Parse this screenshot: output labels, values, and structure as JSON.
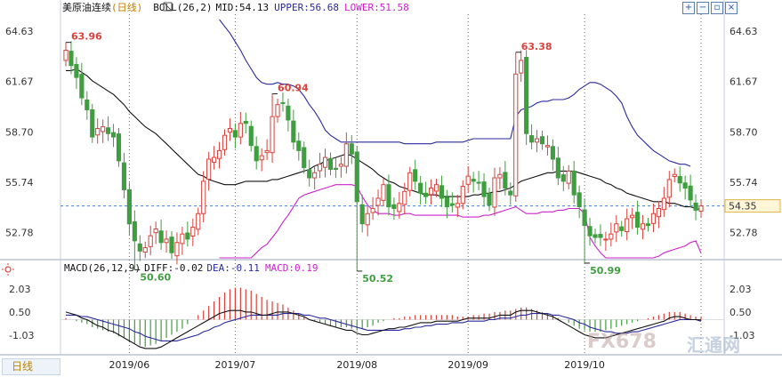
{
  "header": {
    "instrument": "美原油连续",
    "period_tag": "(日线)",
    "indicator": "BOLL(26,2)",
    "mid": "MID:54.13",
    "upper": "UPPER:56.68",
    "lower": "LOWER:51.58"
  },
  "macd_header": {
    "label": "MACD(26,12,9)",
    "diff": "DIFF:-0.02",
    "dea": "DEA:-0.11",
    "macd": "MACD:0.19"
  },
  "bottom_tab": "日线",
  "watermark": {
    "brand": "FX678",
    "cn": "汇通网"
  },
  "colors": {
    "up": "#d8423c",
    "down": "#3f9e3f",
    "mid": "#111111",
    "upper": "#2a2a9c",
    "lower": "#cc22cc",
    "diff": "#111111",
    "dea": "#2a2a9c",
    "price_line": "#4a7fd4"
  },
  "chart_data": {
    "type": "candlestick",
    "price_axis": {
      "ylim": [
        51.3,
        65.3
      ],
      "ticks": [
        "64.63",
        "61.67",
        "58.70",
        "55.74",
        "52.78"
      ]
    },
    "macd_axis": {
      "ylim": [
        -2.2,
        2.9
      ],
      "ticks": [
        "2.03",
        "0.50",
        "-1.03"
      ]
    },
    "current_price": "54.35",
    "x_labels": [
      {
        "i": 12,
        "text": "2019/06"
      },
      {
        "i": 32,
        "text": "2019/07"
      },
      {
        "i": 55,
        "text": "2019/08"
      },
      {
        "i": 76,
        "text": "2019/09"
      },
      {
        "i": 98,
        "text": "2019/10"
      }
    ],
    "annotations": [
      {
        "i": 0,
        "value": 63.96,
        "text": "63.96",
        "pos": "high"
      },
      {
        "i": 13,
        "value": 50.6,
        "text": "50.60",
        "pos": "low"
      },
      {
        "i": 39,
        "value": 60.94,
        "text": "60.94",
        "pos": "high"
      },
      {
        "i": 55,
        "value": 50.52,
        "text": "50.52",
        "pos": "low"
      },
      {
        "i": 85,
        "value": 63.38,
        "text": "63.38",
        "pos": "high"
      },
      {
        "i": 98,
        "value": 50.99,
        "text": "50.99",
        "pos": "low"
      }
    ],
    "closes": [
      63.5,
      62.6,
      61.9,
      60.7,
      60.0,
      58.4,
      58.9,
      59.0,
      58.6,
      58.4,
      57.0,
      55.3,
      53.3,
      52.3,
      51.7,
      51.9,
      52.6,
      53.0,
      52.2,
      52.4,
      51.6,
      52.2,
      52.7,
      52.4,
      53.1,
      53.9,
      55.8,
      57.1,
      57.2,
      57.6,
      58.5,
      58.9,
      58.4,
      59.2,
      59.2,
      57.9,
      57.0,
      57.3,
      57.6,
      59.6,
      60.3,
      60.4,
      59.4,
      58.1,
      57.6,
      56.6,
      56.0,
      56.3,
      56.8,
      57.2,
      56.5,
      56.5,
      56.8,
      58.0,
      57.4,
      54.6,
      53.3,
      53.9,
      54.2,
      54.8,
      55.6,
      54.3,
      54.2,
      54.5,
      55.2,
      56.3,
      55.8,
      55.1,
      54.9,
      55.4,
      55.6,
      54.8,
      54.3,
      54.4,
      54.5,
      55.5,
      56.1,
      55.8,
      55.7,
      54.9,
      54.4,
      56.0,
      56.2,
      55.4,
      55.0,
      62.1,
      62.9,
      58.6,
      58.1,
      58.3,
      58.0,
      57.9,
      57.1,
      56.0,
      55.8,
      56.4,
      55.0,
      54.3,
      53.2,
      52.6,
      52.5,
      52.5,
      52.4,
      52.7,
      53.3,
      52.9,
      53.6,
      53.8,
      53.1,
      53.3,
      53.2,
      53.9,
      54.2,
      54.8,
      55.9,
      56.2,
      55.7,
      55.4,
      54.7,
      54.1,
      54.35
    ],
    "bb_mid": [
      62.3,
      62.3,
      62.4,
      62.2,
      62.0,
      61.7,
      61.5,
      61.3,
      61.1,
      60.9,
      60.6,
      60.3,
      59.9,
      59.6,
      59.3,
      59.0,
      58.8,
      58.6,
      58.3,
      58.0,
      57.7,
      57.4,
      57.1,
      56.8,
      56.5,
      56.2,
      56.1,
      55.9,
      55.8,
      55.7,
      55.6,
      55.6,
      55.6,
      55.7,
      55.8,
      55.8,
      55.8,
      55.8,
      55.8,
      55.9,
      55.9,
      56.0,
      56.1,
      56.2,
      56.3,
      56.4,
      56.5,
      56.7,
      56.8,
      57.0,
      57.1,
      57.2,
      57.3,
      57.4,
      57.3,
      57.1,
      56.9,
      56.7,
      56.5,
      56.2,
      56.0,
      55.8,
      55.7,
      55.5,
      55.4,
      55.3,
      55.2,
      55.1,
      55.0,
      55.0,
      55.0,
      54.9,
      54.9,
      54.9,
      54.9,
      54.9,
      54.9,
      55.0,
      55.0,
      55.1,
      55.1,
      55.2,
      55.2,
      55.3,
      55.4,
      55.6,
      55.8,
      55.9,
      56.0,
      56.1,
      56.2,
      56.3,
      56.3,
      56.4,
      56.4,
      56.4,
      56.4,
      56.3,
      56.2,
      56.1,
      56.0,
      55.9,
      55.7,
      55.6,
      55.4,
      55.3,
      55.1,
      55.0,
      54.9,
      54.8,
      54.7,
      54.6,
      54.6,
      54.6,
      54.5,
      54.5,
      54.4,
      54.3,
      54.3,
      54.2,
      54.13
    ],
    "bb_upper": [
      null,
      null,
      null,
      null,
      null,
      null,
      null,
      null,
      null,
      null,
      null,
      null,
      null,
      null,
      null,
      null,
      null,
      null,
      null,
      null,
      null,
      null,
      null,
      null,
      null,
      null,
      null,
      null,
      null,
      65.3,
      64.9,
      64.5,
      64.0,
      63.5,
      62.9,
      62.4,
      61.9,
      61.6,
      61.5,
      61.5,
      61.6,
      61.5,
      61.5,
      61.4,
      61.2,
      60.8,
      60.3,
      59.9,
      59.4,
      58.8,
      58.5,
      58.3,
      58.1,
      58.1,
      58.1,
      58.1,
      58.1,
      58.1,
      58.1,
      58.1,
      58.1,
      58.1,
      58.1,
      58.1,
      58.0,
      58.0,
      58.0,
      58.0,
      58.0,
      58.0,
      58.1,
      58.1,
      58.1,
      58.1,
      58.1,
      58.1,
      58.2,
      58.3,
      58.3,
      58.3,
      58.3,
      58.3,
      58.3,
      58.3,
      58.3,
      59.6,
      60.0,
      60.1,
      60.2,
      60.4,
      60.5,
      60.5,
      60.6,
      60.6,
      60.6,
      60.7,
      60.9,
      61.2,
      61.4,
      61.6,
      61.6,
      61.5,
      61.3,
      61.1,
      60.8,
      60.4,
      59.6,
      59.0,
      58.5,
      58.2,
      57.9,
      57.6,
      57.4,
      57.2,
      57.0,
      56.9,
      56.8,
      56.8,
      56.68
    ],
    "bb_lower": [
      null,
      null,
      null,
      null,
      null,
      null,
      null,
      null,
      null,
      null,
      null,
      null,
      null,
      null,
      null,
      null,
      null,
      null,
      null,
      null,
      null,
      null,
      null,
      null,
      null,
      null,
      null,
      null,
      null,
      50.5,
      50.5,
      50.5,
      50.6,
      50.8,
      51.0,
      51.3,
      51.6,
      51.9,
      52.1,
      52.5,
      52.9,
      53.4,
      53.8,
      54.3,
      54.8,
      55.0,
      55.1,
      55.2,
      55.3,
      55.4,
      55.5,
      55.6,
      55.6,
      55.6,
      55.6,
      55.5,
      54.9,
      54.4,
      54.1,
      53.9,
      53.9,
      53.9,
      53.8,
      53.8,
      53.9,
      53.9,
      53.8,
      53.8,
      53.8,
      53.8,
      53.8,
      53.8,
      53.8,
      53.8,
      53.8,
      53.7,
      53.7,
      53.7,
      53.7,
      53.8,
      53.8,
      53.9,
      54.0,
      54.1,
      54.2,
      54.3,
      54.1,
      53.9,
      53.9,
      53.9,
      54.0,
      54.0,
      54.0,
      54.1,
      54.1,
      54.2,
      54.2,
      54.2,
      53.9,
      52.5,
      52.0,
      51.6,
      51.3,
      51.2,
      51.2,
      51.2,
      51.1,
      51.0,
      50.9,
      50.8,
      50.9,
      51.2,
      51.4,
      51.6,
      51.7,
      51.8,
      51.9,
      52.0,
      52.2,
      52.3,
      51.58
    ],
    "macd_hist": [
      0.1,
      0.0,
      -0.1,
      -0.2,
      -0.3,
      -0.5,
      -0.6,
      -0.7,
      -0.8,
      -0.9,
      -1.1,
      -1.2,
      -1.4,
      -1.6,
      -1.7,
      -1.8,
      -1.7,
      -1.6,
      -1.4,
      -1.2,
      -1.0,
      -0.8,
      -0.6,
      -0.3,
      0.0,
      0.3,
      0.6,
      0.9,
      1.2,
      1.5,
      1.8,
      2.0,
      2.1,
      2.1,
      2.0,
      1.9,
      1.7,
      1.5,
      1.3,
      1.2,
      1.1,
      1.0,
      0.8,
      0.6,
      0.4,
      0.2,
      0.0,
      -0.1,
      -0.2,
      -0.3,
      -0.4,
      -0.5,
      -0.5,
      -0.5,
      -0.6,
      -0.7,
      -0.6,
      -0.5,
      -0.4,
      -0.2,
      -0.1,
      0.0,
      0.1,
      0.1,
      0.2,
      0.2,
      0.3,
      0.3,
      0.3,
      0.3,
      0.3,
      0.3,
      0.3,
      0.3,
      0.2,
      0.2,
      0.2,
      0.3,
      0.3,
      0.4,
      0.4,
      0.5,
      0.5,
      0.6,
      0.6,
      0.7,
      0.8,
      0.8,
      0.7,
      0.6,
      0.5,
      0.4,
      0.3,
      0.1,
      0.0,
      -0.2,
      -0.4,
      -0.6,
      -0.7,
      -0.8,
      -0.8,
      -0.8,
      -0.7,
      -0.6,
      -0.5,
      -0.4,
      -0.3,
      -0.2,
      -0.1,
      0.0,
      0.1,
      0.2,
      0.3,
      0.4,
      0.5,
      0.5,
      0.5,
      0.4,
      0.3,
      0.2,
      0.19
    ],
    "diff": [
      0.5,
      0.4,
      0.3,
      0.1,
      0.0,
      -0.2,
      -0.4,
      -0.5,
      -0.7,
      -0.8,
      -1.0,
      -1.2,
      -1.4,
      -1.6,
      -1.8,
      -1.9,
      -1.9,
      -1.9,
      -1.8,
      -1.6,
      -1.4,
      -1.2,
      -1.0,
      -0.8,
      -0.6,
      -0.4,
      -0.2,
      0.0,
      0.2,
      0.4,
      0.5,
      0.6,
      0.6,
      0.6,
      0.5,
      0.5,
      0.4,
      0.3,
      0.3,
      0.4,
      0.5,
      0.5,
      0.5,
      0.4,
      0.3,
      0.2,
      0.0,
      -0.1,
      -0.2,
      -0.3,
      -0.4,
      -0.5,
      -0.6,
      -0.7,
      -0.7,
      -0.9,
      -1.0,
      -1.0,
      -0.9,
      -0.8,
      -0.7,
      -0.6,
      -0.6,
      -0.5,
      -0.5,
      -0.4,
      -0.3,
      -0.2,
      -0.2,
      -0.2,
      -0.1,
      -0.1,
      -0.1,
      -0.1,
      -0.1,
      0.0,
      0.1,
      0.1,
      0.1,
      0.1,
      0.1,
      0.2,
      0.3,
      0.3,
      0.3,
      0.5,
      0.6,
      0.6,
      0.6,
      0.5,
      0.4,
      0.3,
      0.2,
      0.0,
      -0.2,
      -0.4,
      -0.6,
      -0.8,
      -1.0,
      -1.1,
      -1.2,
      -1.2,
      -1.2,
      -1.1,
      -1.0,
      -0.9,
      -0.8,
      -0.7,
      -0.6,
      -0.5,
      -0.4,
      -0.3,
      -0.2,
      -0.1,
      0.1,
      0.2,
      0.2,
      0.1,
      0.0,
      0.0,
      -0.02
    ],
    "dea": [
      0.3,
      0.3,
      0.3,
      0.2,
      0.2,
      0.1,
      0.0,
      -0.1,
      -0.2,
      -0.3,
      -0.4,
      -0.5,
      -0.6,
      -0.8,
      -0.9,
      -1.1,
      -1.2,
      -1.3,
      -1.4,
      -1.4,
      -1.4,
      -1.4,
      -1.3,
      -1.2,
      -1.1,
      -1.0,
      -0.8,
      -0.7,
      -0.5,
      -0.4,
      -0.2,
      -0.1,
      0.0,
      0.1,
      0.2,
      0.3,
      0.3,
      0.3,
      0.3,
      0.3,
      0.3,
      0.4,
      0.4,
      0.4,
      0.4,
      0.3,
      0.3,
      0.2,
      0.1,
      0.1,
      0.0,
      -0.1,
      -0.2,
      -0.3,
      -0.4,
      -0.5,
      -0.6,
      -0.7,
      -0.7,
      -0.7,
      -0.7,
      -0.7,
      -0.7,
      -0.7,
      -0.6,
      -0.6,
      -0.5,
      -0.5,
      -0.4,
      -0.4,
      -0.3,
      -0.3,
      -0.3,
      -0.2,
      -0.2,
      -0.2,
      -0.1,
      -0.1,
      -0.1,
      -0.1,
      0.0,
      0.0,
      0.1,
      0.1,
      0.1,
      0.2,
      0.3,
      0.3,
      0.4,
      0.4,
      0.4,
      0.4,
      0.3,
      0.3,
      0.2,
      0.1,
      0.0,
      -0.2,
      -0.3,
      -0.5,
      -0.6,
      -0.7,
      -0.8,
      -0.8,
      -0.9,
      -0.9,
      -0.9,
      -0.8,
      -0.8,
      -0.7,
      -0.6,
      -0.5,
      -0.4,
      -0.3,
      -0.2,
      -0.1,
      0.0,
      0.0,
      0.0,
      0.0,
      -0.11
    ]
  }
}
